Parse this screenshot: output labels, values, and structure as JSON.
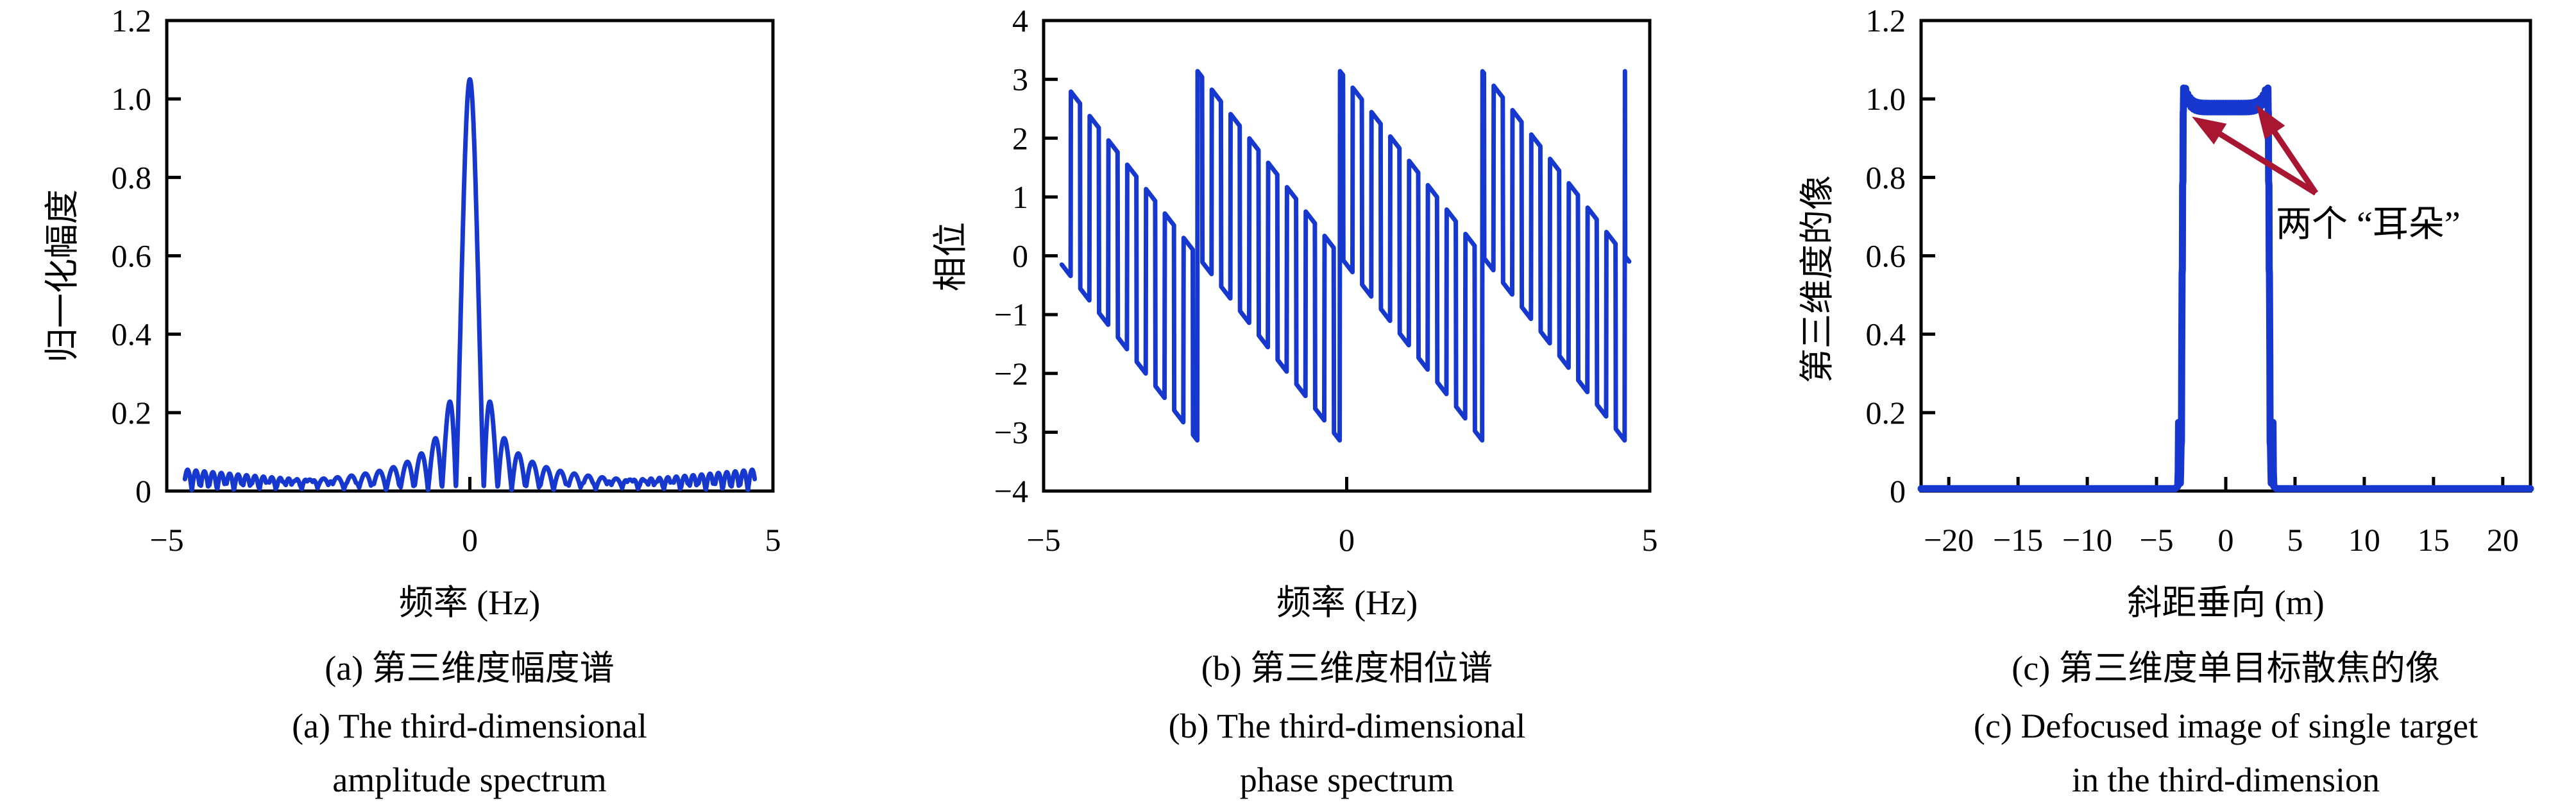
{
  "figure_kind": "three-panel scientific line figure",
  "chart_data": [
    {
      "type": "line",
      "panel": "a",
      "xlabel": "频率 (Hz)",
      "ylabel": "归一化幅度",
      "caption_zh": "(a) 第三维度幅度谱",
      "caption_en1": "(a) The third-dimensional",
      "caption_en2": "amplitude spectrum",
      "xlim": [
        -5,
        5
      ],
      "ylim": [
        0,
        1.2
      ],
      "xtick_values": [
        -5,
        0,
        5
      ],
      "xtick_labels": [
        "−5",
        "0",
        "5"
      ],
      "ytick_values": [
        0,
        0.2,
        0.4,
        0.6,
        0.8,
        1.0,
        1.2
      ],
      "ytick_labels": [
        "0",
        "0.2",
        "0.4",
        "0.6",
        "0.8",
        "1.0",
        "1.2"
      ],
      "grid": false,
      "legend": null,
      "line_color": "#1638cf",
      "line_width": 7,
      "key_points": {
        "peak": [
          0,
          1.05
        ],
        "first_sidelobes": [
          [
            -0.33,
            0.22
          ],
          [
            0.33,
            0.22
          ]
        ],
        "edge_ripple_amplitude": 0.055,
        "data_range": [
          -4.7,
          4.7
        ]
      },
      "model": {
        "kind": "abs_sinc_with_edge_ripple",
        "x_start": -4.7,
        "x_end": 4.7,
        "step": 0.004,
        "peak": 1.05,
        "first_zero": 0.23,
        "ripple_period": 0.139,
        "ripple_base": 0.015,
        "ripple_edge": 0.055,
        "edge_start": 0.8,
        "edge_power": 1.5
      }
    },
    {
      "type": "line",
      "panel": "b",
      "xlabel": "频率 (Hz)",
      "ylabel": "相位",
      "caption_zh": "(b) 第三维度相位谱",
      "caption_en1": "(b) The third-dimensional",
      "caption_en2": "phase spectrum",
      "xlim": [
        -5,
        5
      ],
      "ylim": [
        -4,
        4
      ],
      "xtick_values": [
        -5,
        0,
        5
      ],
      "xtick_labels": [
        "−5",
        "0",
        "5"
      ],
      "ytick_values": [
        -4,
        -3,
        -2,
        -1,
        0,
        1,
        2,
        3,
        4
      ],
      "ytick_labels": [
        "−4",
        "−3",
        "−2",
        "−1",
        "0",
        "1",
        "2",
        "3",
        "4"
      ],
      "grid": false,
      "legend": null,
      "line_color": "#1638cf",
      "line_width": 7,
      "key_points": {
        "wrap_range": [
          -3.14,
          3.14
        ],
        "group_boundaries_hz": [
          -2.5,
          -0.15,
          2.2,
          4.55
        ],
        "teeth_period_hz": 0.31,
        "data_range": [
          -4.7,
          4.66
        ]
      },
      "model": {
        "kind": "wrapped_linear_phase_with_pi_flips",
        "x_start": -4.7,
        "x_end": 4.66,
        "step": 0.005,
        "slope": -1.337,
        "offset": -0.15,
        "flip_half_period": 0.155,
        "flip_offset": 4.71
      }
    },
    {
      "type": "line",
      "panel": "c",
      "xlabel": "斜距垂向 (m)",
      "ylabel": "第三维度的像",
      "caption_zh": "(c) 第三维度单目标散焦的像",
      "caption_en1": "(c) Defocused image of single target",
      "caption_en2": "in the third-dimension",
      "xlim": [
        -22,
        22
      ],
      "ylim": [
        0,
        1.2
      ],
      "xtick_values": [
        -20,
        -15,
        -10,
        -5,
        0,
        5,
        10,
        15,
        20
      ],
      "xtick_labels": [
        "−20",
        "−15",
        "−10",
        "−5",
        "0",
        "5",
        "10",
        "15",
        "20"
      ],
      "ytick_values": [
        0,
        0.2,
        0.4,
        0.6,
        0.8,
        1.0,
        1.2
      ],
      "ytick_labels": [
        "0",
        "0.2",
        "0.4",
        "0.6",
        "0.8",
        "1.0",
        "1.2"
      ],
      "grid": false,
      "legend": null,
      "line_color": "#1638cf",
      "line_width": 11,
      "key_points": {
        "pulse_edges_m": [
          -3,
          3
        ],
        "top_level": 0.98,
        "ear_peaks": [
          [
            -3,
            1.03
          ],
          [
            3,
            1.03
          ]
        ],
        "base_spikes": [
          [
            -3.4,
            0.175
          ],
          [
            3.4,
            0.175
          ]
        ],
        "baseline": 0.006
      },
      "model": {
        "kind": "defocused_rect_pulse",
        "x_start": -22,
        "x_end": 22,
        "baseline": 0.006,
        "edge": 3.0,
        "top_center": 0.978,
        "top_edge": 1.028,
        "serration": 0.011,
        "serration_period": 0.08,
        "spike_x": 3.41,
        "spike_height": 0.175
      }
    }
  ],
  "annotation": {
    "text": "两个 “耳朵”",
    "color": "#a81631",
    "applies_to_panel": "c",
    "apex_data": [
      6.5,
      0.76
    ],
    "tip1_data": [
      -2.45,
      0.955
    ],
    "tip2_data": [
      2.2,
      0.985
    ],
    "shaft_width": 9,
    "head_length": 52,
    "head_half_width": 19
  }
}
